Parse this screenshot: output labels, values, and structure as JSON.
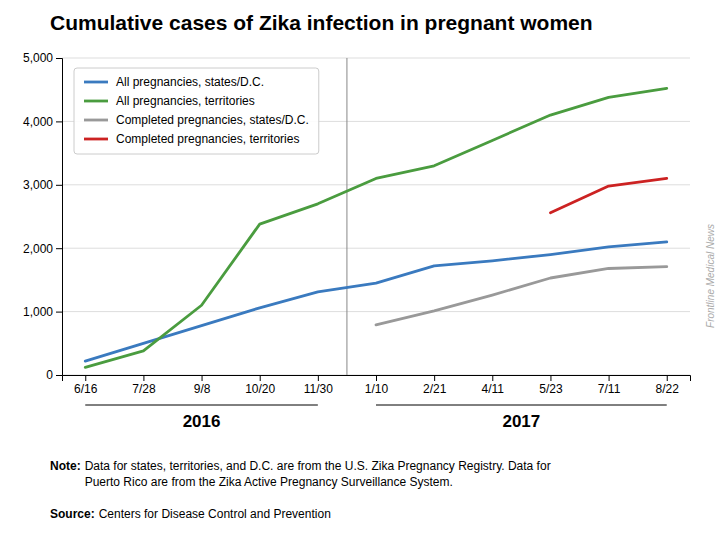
{
  "chart_data": {
    "type": "line",
    "title": "Cumulative cases of Zika infection in pregnant women",
    "categories": [
      "6/16",
      "7/28",
      "9/8",
      "10/20",
      "11/30",
      "1/10",
      "2/21",
      "4/11",
      "5/23",
      "7/11",
      "8/22"
    ],
    "series": [
      {
        "name": "All pregnancies, states/D.C.",
        "color": "#3a7abf",
        "values": [
          220,
          500,
          780,
          1060,
          1310,
          1450,
          1720,
          1800,
          1900,
          2020,
          2100
        ]
      },
      {
        "name": "All pregnancies, territories",
        "color": "#4a9c3f",
        "values": [
          120,
          380,
          1100,
          2380,
          2700,
          3100,
          3300,
          3700,
          4100,
          4380,
          4520
        ]
      },
      {
        "name": "Completed pregnancies, states/D.C.",
        "color": "#999999",
        "values": [
          null,
          null,
          null,
          null,
          null,
          790,
          1010,
          1260,
          1530,
          1680,
          1710
        ]
      },
      {
        "name": "Completed pregnancies, territories",
        "color": "#cc2222",
        "values": [
          null,
          null,
          null,
          null,
          null,
          null,
          null,
          null,
          2560,
          2980,
          3100
        ]
      }
    ],
    "ylim": [
      0,
      5000
    ],
    "yticks": [
      0,
      {
        "value": 1000,
        "label": "1,000"
      },
      {
        "value": 2000,
        "label": "2,000"
      },
      {
        "value": 3000,
        "label": "3,000"
      },
      {
        "value": 4000,
        "label": "4,000"
      },
      {
        "value": 5000,
        "label": "5,000"
      }
    ],
    "grid": true,
    "legend": "top-left",
    "annotations": [
      "2016",
      "2017",
      "Note:",
      "Data for states, territories, and D.C. are from the U.S. Zika Pregnancy Registry. Data for\nPuerto Rico are from the Zika Active Pregnancy Surveillance System.",
      "Source:",
      "Centers for Disease Control and Prevention",
      "Frontline Medical News"
    ]
  }
}
